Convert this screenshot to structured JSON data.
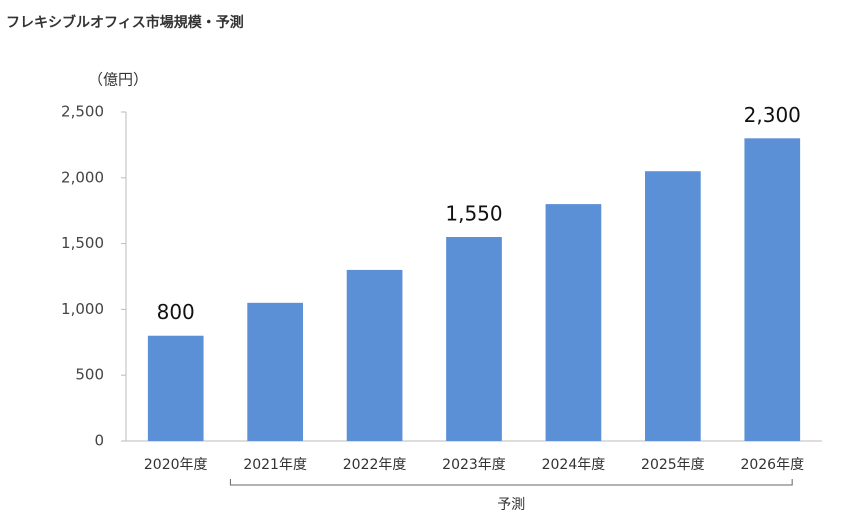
{
  "chart_data": {
    "type": "bar",
    "title": "フレキシブルオフィス市場規模・予測",
    "y_unit": "（億円）",
    "categories": [
      "2020年度",
      "2021年度",
      "2022年度",
      "2023年度",
      "2024年度",
      "2025年度",
      "2026年度"
    ],
    "values": [
      800,
      1050,
      1300,
      1550,
      1800,
      2050,
      2300
    ],
    "value_labels": [
      "800",
      null,
      null,
      "1,550",
      null,
      null,
      "2,300"
    ],
    "color": "#5b8fd6",
    "ylim": [
      0,
      2500
    ],
    "yticks": [
      0,
      500,
      {
        "value": 1000,
        "label": "1,000"
      },
      {
        "value": 1500,
        "label": "1,500"
      },
      {
        "value": 2000,
        "label": "2,000"
      },
      {
        "value": 2500,
        "label": "2,500"
      }
    ],
    "grid": false,
    "annotation": "予測"
  }
}
